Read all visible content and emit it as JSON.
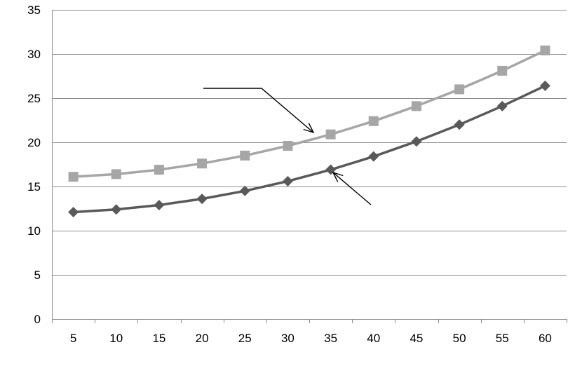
{
  "chart_data": {
    "type": "line",
    "title": "",
    "xlabel": "",
    "ylabel": "",
    "categories": [
      "5",
      "10",
      "15",
      "20",
      "25",
      "30",
      "35",
      "40",
      "45",
      "50",
      "55",
      "60"
    ],
    "x": [
      5,
      10,
      15,
      20,
      25,
      30,
      35,
      40,
      45,
      50,
      55,
      60
    ],
    "ylim": [
      0,
      35
    ],
    "yticks": [
      0,
      5,
      10,
      15,
      20,
      25,
      30,
      35
    ],
    "grid": true,
    "legend": "none",
    "series": [
      {
        "marker": "square",
        "color": "#a6a6a6",
        "values": [
          16.1,
          16.4,
          16.9,
          17.6,
          18.5,
          19.6,
          20.9,
          22.4,
          24.1,
          26.0,
          28.1,
          30.4
        ]
      },
      {
        "marker": "diamond",
        "color": "#595959",
        "values": [
          12.1,
          12.4,
          12.9,
          13.6,
          14.5,
          15.6,
          16.9,
          18.4,
          20.1,
          22.0,
          24.1,
          26.4
        ]
      }
    ],
    "annotations": [
      {
        "type": "arrow",
        "points_to_series": 0,
        "points_to_x": 35
      },
      {
        "type": "arrow",
        "points_to_series": 1,
        "points_to_x": 35
      }
    ]
  }
}
